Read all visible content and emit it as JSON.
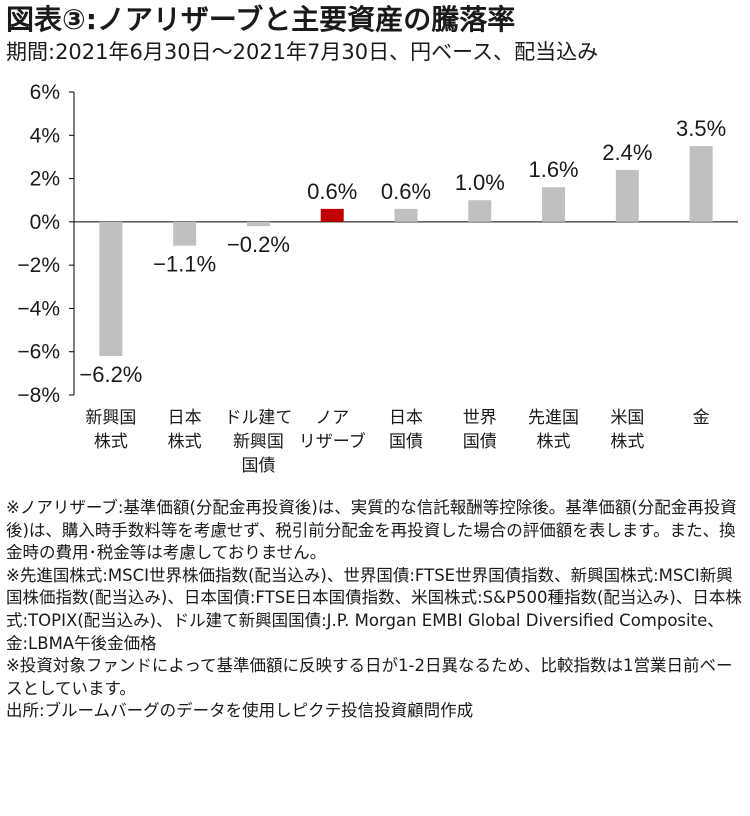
{
  "header": {
    "title": "図表③:ノアリザーブと主要資産の騰落率",
    "subtitle": "期間:2021年6月30日～2021年7月30日、円ベース、配当込み"
  },
  "colors": {
    "bar": "#c0c0c0",
    "highlight": "#c00000",
    "axis": "#000000"
  },
  "chart_data": {
    "type": "bar",
    "categories": [
      [
        "新興国",
        "株式"
      ],
      [
        "日本",
        "株式"
      ],
      [
        "ドル建て",
        "新興国",
        "国債"
      ],
      [
        "ノア",
        "リザーブ"
      ],
      [
        "日本",
        "国債"
      ],
      [
        "世界",
        "国債"
      ],
      [
        "先進国",
        "株式"
      ],
      [
        "米国",
        "株式"
      ],
      [
        "金"
      ]
    ],
    "values": [
      -6.2,
      -1.1,
      -0.2,
      0.6,
      0.6,
      1.0,
      1.6,
      2.4,
      3.5
    ],
    "value_labels": [
      "−6.2%",
      "−1.1%",
      "−0.2%",
      "0.6%",
      "0.6%",
      "1.0%",
      "1.6%",
      "2.4%",
      "3.5%"
    ],
    "highlight_index": 3,
    "ylim": [
      -8,
      6
    ],
    "yticks": [
      6,
      4,
      2,
      0,
      -2,
      -4,
      -6,
      -8
    ],
    "ytick_labels": [
      "6%",
      "4%",
      "2%",
      "0%",
      "−2%",
      "−4%",
      "−6%",
      "−8%"
    ],
    "grid": false,
    "legend": "none"
  },
  "notes": [
    "※ノアリザーブ:基準価額(分配金再投資後)は、実質的な信託報酬等控除後。基準価額(分配金再投資後)は、購入時手数料等を考慮せず、税引前分配金を再投資した場合の評価額を表します。また、換金時の費用･税金等は考慮しておりません。",
    "※先進国株式:MSCI世界株価指数(配当込み)、世界国債:FTSE世界国債指数、新興国株式:MSCI新興国株価指数(配当込み)、日本国債:FTSE日本国債指数、米国株式:S&P500種指数(配当込み)、日本株式:TOPIX(配当込み)、ドル建て新興国国債:J.P. Morgan EMBI Global Diversified Composite、金:LBMA午後金価格",
    "※投資対象ファンドによって基準価額に反映する日が1-2日異なるため、比較指数は1営業日前ベースとしています。",
    "出所:ブルームバーグのデータを使用しピクテ投信投資顧問作成"
  ]
}
